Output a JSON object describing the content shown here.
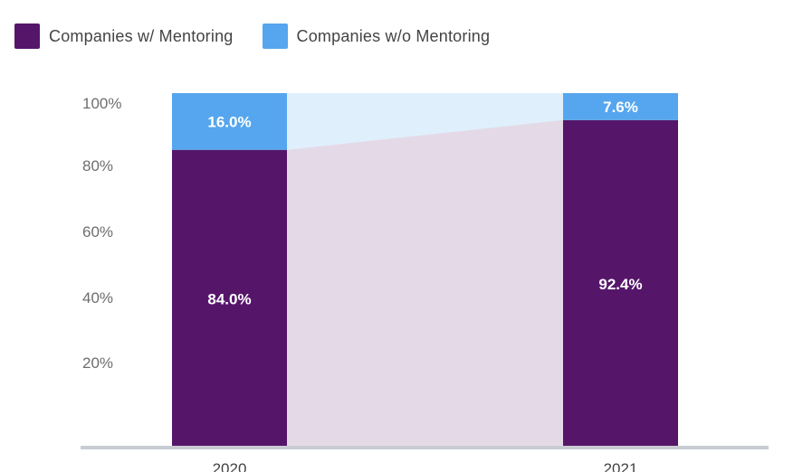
{
  "legend": [
    {
      "label": "Companies w/ Mentoring",
      "color": "#55166a"
    },
    {
      "label": "Companies w/o Mentoring",
      "color": "#55a6ee"
    }
  ],
  "chart_data": {
    "type": "bar",
    "stacked": true,
    "categories": [
      "2020",
      "2021"
    ],
    "series": [
      {
        "name": "Companies w/ Mentoring",
        "values": [
          84.0,
          92.4
        ],
        "color": "#55166a"
      },
      {
        "name": "Companies w/o Mentoring",
        "values": [
          16.0,
          7.6
        ],
        "color": "#55a6ee"
      }
    ],
    "data_labels": [
      [
        "84.0%",
        "92.4%"
      ],
      [
        "16.0%",
        "7.6%"
      ]
    ],
    "yticks": [
      "20%",
      "40%",
      "60%",
      "80%",
      "100%"
    ],
    "ylim": [
      0,
      100
    ],
    "legend_position": "top-left",
    "grid": false
  }
}
